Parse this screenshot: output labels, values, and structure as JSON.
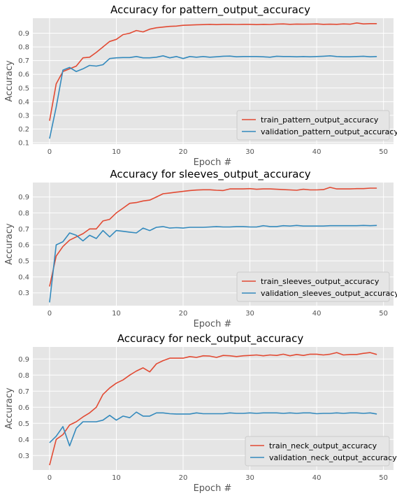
{
  "chart_data": [
    {
      "type": "line",
      "title": "Accuracy for pattern_output_accuracy",
      "xlabel": "Epoch #",
      "ylabel": "Accuracy",
      "xlim": [
        -2.5,
        51.5
      ],
      "ylim": [
        0.09,
        1.01
      ],
      "xticks": [
        0,
        10,
        20,
        30,
        40,
        50
      ],
      "yticks": [
        0.1,
        0.2,
        0.3,
        0.4,
        0.5,
        0.6,
        0.7,
        0.8,
        0.9
      ],
      "grid": true,
      "legend_position": "lower right",
      "x": [
        0,
        1,
        2,
        3,
        4,
        5,
        6,
        7,
        8,
        9,
        10,
        11,
        12,
        13,
        14,
        15,
        16,
        17,
        18,
        19,
        20,
        21,
        22,
        23,
        24,
        25,
        26,
        27,
        28,
        29,
        30,
        31,
        32,
        33,
        34,
        35,
        36,
        37,
        38,
        39,
        40,
        41,
        42,
        43,
        44,
        45,
        46,
        47,
        48,
        49
      ],
      "series": [
        {
          "name": "train_pattern_output_accuracy",
          "color": "#E24A33",
          "values": [
            0.26,
            0.53,
            0.62,
            0.64,
            0.66,
            0.72,
            0.725,
            0.76,
            0.8,
            0.84,
            0.855,
            0.89,
            0.9,
            0.92,
            0.91,
            0.93,
            0.94,
            0.945,
            0.95,
            0.952,
            0.958,
            0.96,
            0.962,
            0.963,
            0.965,
            0.963,
            0.965,
            0.965,
            0.964,
            0.965,
            0.965,
            0.963,
            0.965,
            0.964,
            0.967,
            0.968,
            0.965,
            0.967,
            0.966,
            0.967,
            0.968,
            0.965,
            0.966,
            0.965,
            0.968,
            0.966,
            0.975,
            0.968,
            0.97,
            0.97
          ]
        },
        {
          "name": "validation_pattern_output_accuracy",
          "color": "#348ABD",
          "values": [
            0.13,
            0.36,
            0.63,
            0.65,
            0.62,
            0.64,
            0.665,
            0.66,
            0.67,
            0.715,
            0.72,
            0.722,
            0.722,
            0.73,
            0.72,
            0.72,
            0.725,
            0.735,
            0.72,
            0.73,
            0.715,
            0.73,
            0.725,
            0.73,
            0.725,
            0.728,
            0.732,
            0.733,
            0.728,
            0.73,
            0.73,
            0.73,
            0.728,
            0.725,
            0.732,
            0.73,
            0.73,
            0.728,
            0.73,
            0.728,
            0.73,
            0.732,
            0.735,
            0.73,
            0.728,
            0.728,
            0.73,
            0.732,
            0.728,
            0.73
          ]
        }
      ]
    },
    {
      "type": "line",
      "title": "Accuracy for sleeves_output_accuracy",
      "xlabel": "Epoch #",
      "ylabel": "Accuracy",
      "xlim": [
        -2.5,
        51.5
      ],
      "ylim": [
        0.22,
        0.99
      ],
      "xticks": [
        0,
        10,
        20,
        30,
        40,
        50
      ],
      "yticks": [
        0.3,
        0.4,
        0.5,
        0.6,
        0.7,
        0.8,
        0.9
      ],
      "grid": true,
      "legend_position": "lower right",
      "x": [
        0,
        1,
        2,
        3,
        4,
        5,
        6,
        7,
        8,
        9,
        10,
        11,
        12,
        13,
        14,
        15,
        16,
        17,
        18,
        19,
        20,
        21,
        22,
        23,
        24,
        25,
        26,
        27,
        28,
        29,
        30,
        31,
        32,
        33,
        34,
        35,
        36,
        37,
        38,
        39,
        40,
        41,
        42,
        43,
        44,
        45,
        46,
        47,
        48,
        49
      ],
      "series": [
        {
          "name": "train_sleeves_output_accuracy",
          "color": "#E24A33",
          "values": [
            0.34,
            0.53,
            0.59,
            0.63,
            0.65,
            0.67,
            0.7,
            0.7,
            0.75,
            0.76,
            0.8,
            0.83,
            0.86,
            0.865,
            0.875,
            0.88,
            0.9,
            0.92,
            0.925,
            0.93,
            0.935,
            0.94,
            0.943,
            0.945,
            0.945,
            0.942,
            0.94,
            0.95,
            0.95,
            0.95,
            0.952,
            0.948,
            0.95,
            0.95,
            0.948,
            0.946,
            0.944,
            0.942,
            0.948,
            0.944,
            0.944,
            0.946,
            0.96,
            0.95,
            0.95,
            0.95,
            0.952,
            0.952,
            0.955,
            0.955
          ]
        },
        {
          "name": "validation_sleeves_output_accuracy",
          "color": "#348ABD",
          "values": [
            0.24,
            0.6,
            0.62,
            0.675,
            0.66,
            0.625,
            0.66,
            0.64,
            0.69,
            0.65,
            0.69,
            0.685,
            0.68,
            0.675,
            0.705,
            0.69,
            0.71,
            0.715,
            0.705,
            0.708,
            0.705,
            0.71,
            0.71,
            0.71,
            0.712,
            0.715,
            0.712,
            0.712,
            0.715,
            0.715,
            0.712,
            0.712,
            0.72,
            0.715,
            0.715,
            0.72,
            0.718,
            0.722,
            0.718,
            0.718,
            0.718,
            0.718,
            0.72,
            0.72,
            0.72,
            0.72,
            0.72,
            0.722,
            0.72,
            0.722
          ]
        }
      ]
    },
    {
      "type": "line",
      "title": "Accuracy for neck_output_accuracy",
      "xlabel": "Epoch #",
      "ylabel": "Accuracy",
      "xlim": [
        -2.5,
        51.5
      ],
      "ylim": [
        0.21,
        0.975
      ],
      "xticks": [
        0,
        10,
        20,
        30,
        40,
        50
      ],
      "yticks": [
        0.3,
        0.4,
        0.5,
        0.6,
        0.7,
        0.8,
        0.9
      ],
      "grid": true,
      "legend_position": "lower right",
      "x": [
        0,
        1,
        2,
        3,
        4,
        5,
        6,
        7,
        8,
        9,
        10,
        11,
        12,
        13,
        14,
        15,
        16,
        17,
        18,
        19,
        20,
        21,
        22,
        23,
        24,
        25,
        26,
        27,
        28,
        29,
        30,
        31,
        32,
        33,
        34,
        35,
        36,
        37,
        38,
        39,
        40,
        41,
        42,
        43,
        44,
        45,
        46,
        47,
        48,
        49
      ],
      "series": [
        {
          "name": "train_neck_output_accuracy",
          "color": "#E24A33",
          "values": [
            0.24,
            0.4,
            0.43,
            0.49,
            0.51,
            0.54,
            0.565,
            0.6,
            0.68,
            0.72,
            0.75,
            0.77,
            0.8,
            0.825,
            0.845,
            0.82,
            0.87,
            0.89,
            0.905,
            0.905,
            0.905,
            0.915,
            0.91,
            0.92,
            0.918,
            0.91,
            0.922,
            0.92,
            0.915,
            0.92,
            0.922,
            0.925,
            0.92,
            0.925,
            0.922,
            0.93,
            0.92,
            0.928,
            0.922,
            0.93,
            0.93,
            0.925,
            0.93,
            0.94,
            0.925,
            0.928,
            0.928,
            0.935,
            0.94,
            0.928
          ]
        },
        {
          "name": "validation_neck_output_accuracy",
          "color": "#348ABD",
          "values": [
            0.38,
            0.42,
            0.48,
            0.36,
            0.47,
            0.51,
            0.51,
            0.51,
            0.52,
            0.55,
            0.52,
            0.545,
            0.535,
            0.57,
            0.545,
            0.545,
            0.565,
            0.565,
            0.56,
            0.558,
            0.558,
            0.558,
            0.565,
            0.56,
            0.56,
            0.56,
            0.56,
            0.565,
            0.562,
            0.562,
            0.565,
            0.562,
            0.565,
            0.565,
            0.565,
            0.562,
            0.565,
            0.562,
            0.565,
            0.565,
            0.56,
            0.562,
            0.562,
            0.565,
            0.562,
            0.565,
            0.565,
            0.562,
            0.565,
            0.558
          ]
        }
      ]
    }
  ]
}
